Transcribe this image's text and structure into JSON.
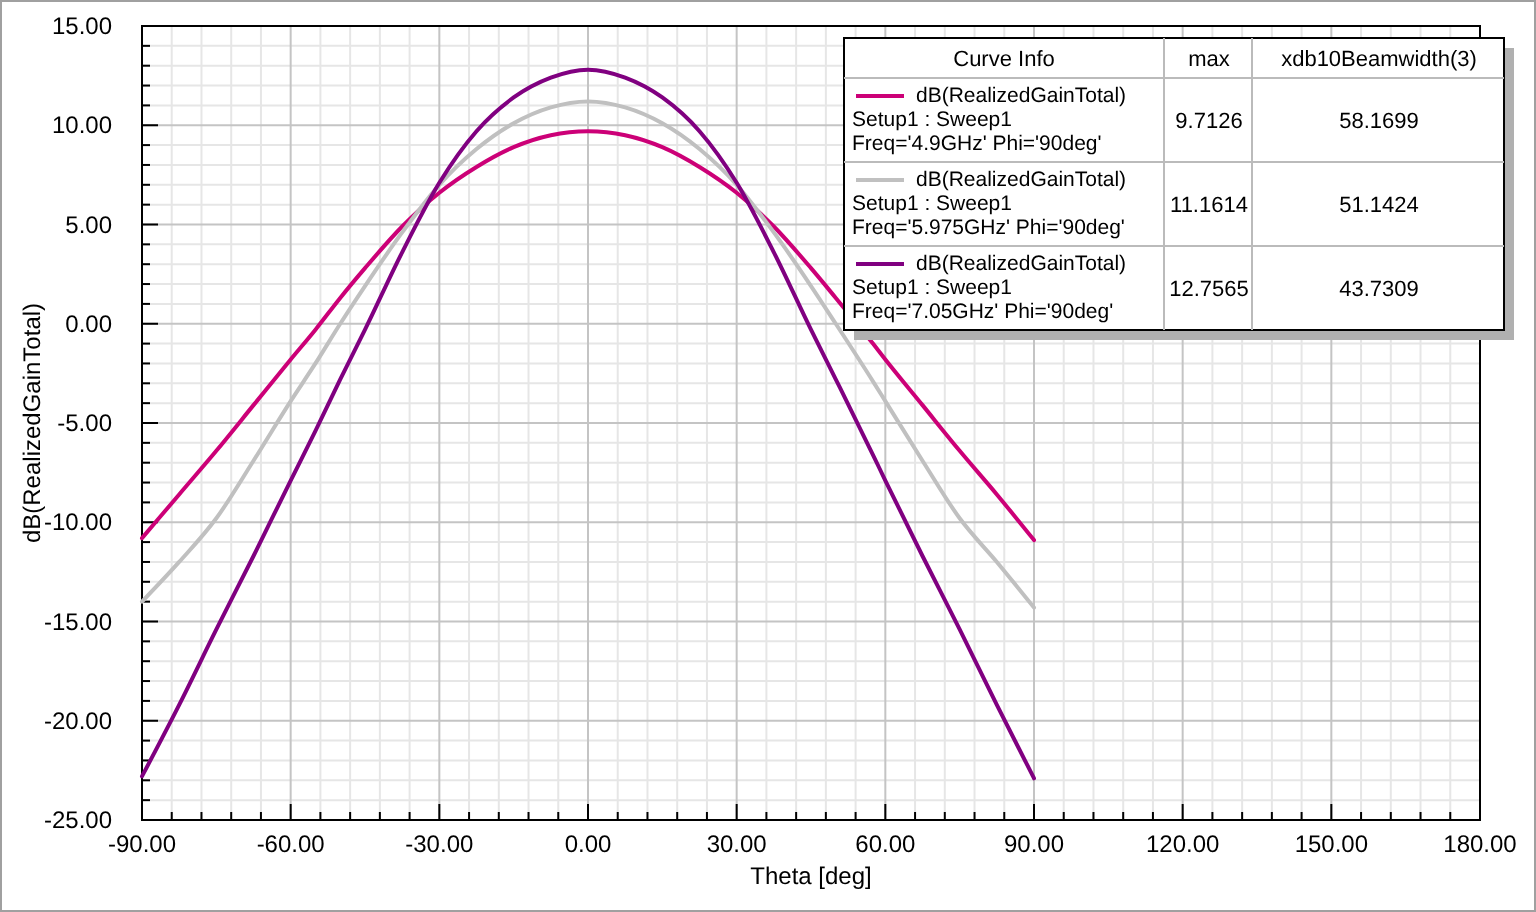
{
  "chart_data": {
    "type": "line",
    "xlabel": "Theta [deg]",
    "ylabel": "dB(RealizedGainTotal)",
    "x": [
      -90,
      -82.5,
      -75,
      -67.5,
      -60,
      -55,
      -50,
      -45,
      -37.5,
      -30,
      -22.5,
      -15,
      -7.5,
      0,
      7.5,
      15,
      22.5,
      30,
      37.5,
      45,
      50,
      57.5,
      60,
      67.5,
      75,
      82.5,
      90
    ],
    "series": [
      {
        "name": "dB(RealizedGainTotal)\nSetup1 : Sweep1\nFreq='4.9GHz' Phi='90deg'",
        "color": "#cc0077",
        "values": [
          -10.8,
          -8.6,
          -6.4,
          -4.1,
          -1.8,
          -0.3,
          1.3,
          2.8,
          4.9,
          6.6,
          7.9,
          8.9,
          9.5,
          9.7,
          9.5,
          8.9,
          7.9,
          6.6,
          4.9,
          2.8,
          1.3,
          -1.0,
          -1.8,
          -4.1,
          -6.4,
          -8.6,
          -10.9
        ]
      },
      {
        "name": "dB(RealizedGainTotal)\nSetup1 : Sweep1\nFreq='5.975GHz' Phi='90deg'",
        "color": "#c0c0c0",
        "values": [
          -14.0,
          -12.0,
          -9.8,
          -6.9,
          -3.9,
          -2.0,
          0.0,
          1.9,
          4.6,
          7.0,
          8.8,
          10.1,
          10.9,
          11.2,
          10.9,
          10.1,
          8.8,
          7.0,
          4.6,
          1.9,
          0.0,
          -2.9,
          -3.9,
          -6.9,
          -9.8,
          -12.0,
          -14.3
        ]
      },
      {
        "name": "dB(RealizedGainTotal)\nSetup1 : Sweep1\nFreq='7.05GHz' Phi='90deg'",
        "color": "#800080",
        "values": [
          -22.8,
          -19.2,
          -15.4,
          -11.7,
          -7.9,
          -5.4,
          -2.8,
          -0.3,
          3.6,
          7.1,
          9.7,
          11.4,
          12.4,
          12.8,
          12.4,
          11.4,
          9.7,
          7.1,
          3.6,
          -0.3,
          -2.8,
          -6.6,
          -7.9,
          -11.7,
          -15.4,
          -19.2,
          -22.9
        ]
      }
    ],
    "xlim": [
      -90,
      180
    ],
    "xticks": [
      {
        "value": -90,
        "label": "-90.00"
      },
      {
        "value": -60,
        "label": "-60.00"
      },
      {
        "value": -30,
        "label": "-30.00"
      },
      {
        "value": 0,
        "label": "0.00"
      },
      {
        "value": 30,
        "label": "30.00"
      },
      {
        "value": 60,
        "label": "60.00"
      },
      {
        "value": 90,
        "label": "90.00"
      },
      {
        "value": 120,
        "label": "120.00"
      },
      {
        "value": 150,
        "label": "150.00"
      },
      {
        "value": 180,
        "label": "180.00"
      }
    ],
    "ylim": [
      -25,
      15
    ],
    "yticks": [
      {
        "value": -25,
        "label": "-25.00"
      },
      {
        "value": -20,
        "label": "-20.00"
      },
      {
        "value": -15,
        "label": "-15.00"
      },
      {
        "value": -10,
        "label": "-10.00"
      },
      {
        "value": -5,
        "label": "-5.00"
      },
      {
        "value": 0,
        "label": "0.00"
      },
      {
        "value": 5,
        "label": "5.00"
      },
      {
        "value": 10,
        "label": "10.00"
      },
      {
        "value": 15,
        "label": "15.00"
      }
    ],
    "grid": true,
    "legend": "top right",
    "legend_title": "Curve Info",
    "annotations": [
      "max",
      "xdb10Beamwidth(3)",
      "9.7126",
      "58.1699",
      "11.1614",
      "51.1424",
      "12.7565",
      "43.7309"
    ]
  }
}
